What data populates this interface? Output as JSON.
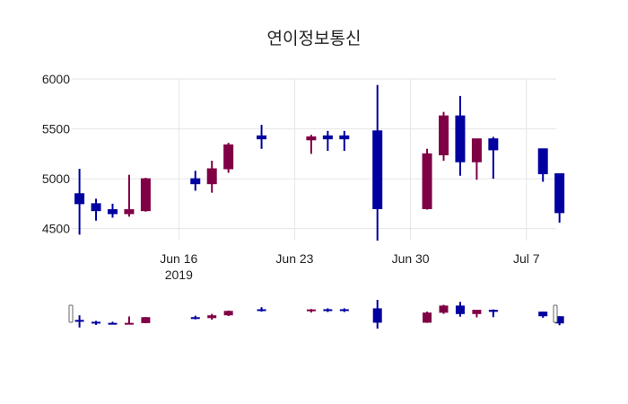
{
  "chart_data": {
    "type": "candlestick",
    "title": "연이정보통신",
    "xlabel": "",
    "ylabel": "",
    "ylim": [
      4380,
      6000
    ],
    "y_ticks": [
      4500,
      5000,
      5500,
      6000
    ],
    "x_ticks": [
      {
        "date": "2019-06-16",
        "label": "Jun 16",
        "sub": "2019"
      },
      {
        "date": "2019-06-23",
        "label": "Jun 23",
        "sub": ""
      },
      {
        "date": "2019-06-30",
        "label": "Jun 30",
        "sub": ""
      },
      {
        "date": "2019-07-07",
        "label": "Jul 7",
        "sub": ""
      }
    ],
    "grid": true,
    "rangeslider": true,
    "colors": {
      "increasing": "#7f0044",
      "decreasing": "#0000a0"
    },
    "data": [
      {
        "date": "2019-06-10",
        "open": 4850,
        "high": 5100,
        "low": 4440,
        "close": 4750
      },
      {
        "date": "2019-06-11",
        "open": 4750,
        "high": 4800,
        "low": 4580,
        "close": 4680
      },
      {
        "date": "2019-06-12",
        "open": 4690,
        "high": 4750,
        "low": 4610,
        "close": 4650
      },
      {
        "date": "2019-06-13",
        "open": 4650,
        "high": 5040,
        "low": 4620,
        "close": 4690
      },
      {
        "date": "2019-06-14",
        "open": 4680,
        "high": 5010,
        "low": 4670,
        "close": 5000
      },
      {
        "date": "2019-06-17",
        "open": 5000,
        "high": 5080,
        "low": 4880,
        "close": 4950
      },
      {
        "date": "2019-06-18",
        "open": 4950,
        "high": 5180,
        "low": 4860,
        "close": 5100
      },
      {
        "date": "2019-06-19",
        "open": 5100,
        "high": 5360,
        "low": 5060,
        "close": 5340
      },
      {
        "date": "2019-06-21",
        "open": 5430,
        "high": 5540,
        "low": 5300,
        "close": 5400
      },
      {
        "date": "2019-06-24",
        "open": 5390,
        "high": 5440,
        "low": 5250,
        "close": 5420
      },
      {
        "date": "2019-06-25",
        "open": 5430,
        "high": 5480,
        "low": 5280,
        "close": 5400
      },
      {
        "date": "2019-06-26",
        "open": 5430,
        "high": 5480,
        "low": 5280,
        "close": 5400
      },
      {
        "date": "2019-06-28",
        "open": 5480,
        "high": 5940,
        "low": 4380,
        "close": 4700
      },
      {
        "date": "2019-07-01",
        "open": 4700,
        "high": 5300,
        "low": 4690,
        "close": 5250
      },
      {
        "date": "2019-07-02",
        "open": 5240,
        "high": 5670,
        "low": 5180,
        "close": 5630
      },
      {
        "date": "2019-07-03",
        "open": 5630,
        "high": 5830,
        "low": 5030,
        "close": 5170
      },
      {
        "date": "2019-07-04",
        "open": 5170,
        "high": 5400,
        "low": 4990,
        "close": 5400
      },
      {
        "date": "2019-07-05",
        "open": 5400,
        "high": 5420,
        "low": 5000,
        "close": 5290
      },
      {
        "date": "2019-07-08",
        "open": 5300,
        "high": 5300,
        "low": 4970,
        "close": 5050
      },
      {
        "date": "2019-07-09",
        "open": 5050,
        "high": 5050,
        "low": 4560,
        "close": 4660
      }
    ]
  }
}
